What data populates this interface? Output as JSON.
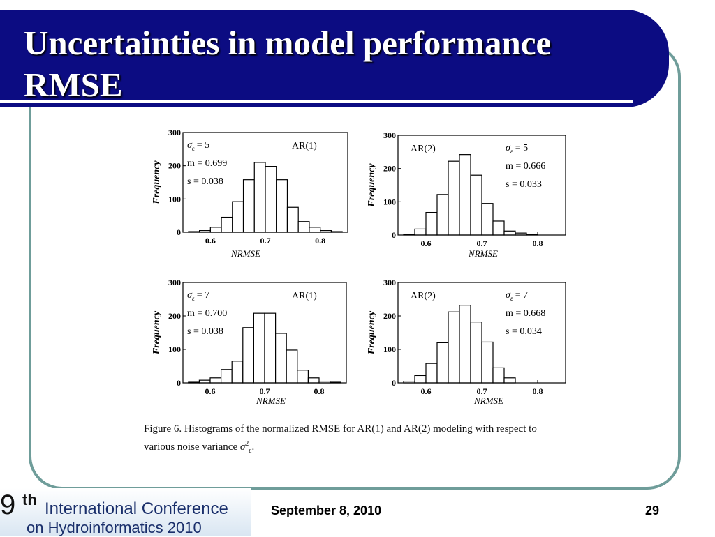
{
  "slide": {
    "title_line1": "Uncertainties in model performance",
    "title_line2": "RMSE",
    "date": "September 8, 2010",
    "page_number": "29"
  },
  "logo": {
    "number": "9",
    "superscript": "th",
    "line1": "International Conference",
    "line2": "on Hydroinformatics 2010"
  },
  "caption": {
    "line1": "Figure 6. Histograms of the normalized RMSE for AR(1) and AR(2) modeling with respect to",
    "line2_prefix": "various noise variance",
    "line2_symbol": "σ",
    "line2_sup": "2",
    "line2_sub": "ε",
    "line2_end": "."
  },
  "chart_data": [
    {
      "type": "bar",
      "model": "AR(1)",
      "sigma_label": "σ",
      "sigma_sub": "ε",
      "sigma_value": "= 5",
      "m_text": "m = 0.699",
      "s_text": "s = 0.038",
      "xlabel": "NRMSE",
      "ylabel": "Frequency",
      "xlim": [
        0.55,
        0.85
      ],
      "ylim": [
        0,
        300
      ],
      "xticks": [
        "0.6",
        "0.7",
        "0.8"
      ],
      "yticks": [
        "0",
        "100",
        "200",
        "300"
      ],
      "bin_start": 0.56,
      "bin_width": 0.02,
      "values": [
        2,
        5,
        15,
        45,
        92,
        158,
        210,
        198,
        158,
        75,
        32,
        15,
        5,
        2
      ]
    },
    {
      "type": "bar",
      "model": "AR(2)",
      "sigma_label": "σ",
      "sigma_sub": "ε",
      "sigma_value": "= 5",
      "m_text": "m = 0.666",
      "s_text": "s = 0.033",
      "xlabel": "NRMSE",
      "ylabel": "Frequency",
      "xlim": [
        0.55,
        0.85
      ],
      "ylim": [
        0,
        300
      ],
      "xticks": [
        "0.6",
        "0.7",
        "0.8"
      ],
      "yticks": [
        "0",
        "100",
        "200",
        "300"
      ],
      "bin_start": 0.56,
      "bin_width": 0.02,
      "values": [
        2,
        18,
        68,
        122,
        222,
        242,
        180,
        95,
        42,
        12,
        6,
        2
      ]
    },
    {
      "type": "bar",
      "model": "AR(1)",
      "sigma_label": "σ",
      "sigma_sub": "ε",
      "sigma_value": "= 7",
      "m_text": "m = 0.700",
      "s_text": "s = 0.038",
      "xlabel": "NRMSE",
      "ylabel": "Frequency",
      "xlim": [
        0.55,
        0.85
      ],
      "ylim": [
        0,
        300
      ],
      "xticks": [
        "0.6",
        "0.7",
        "0.8"
      ],
      "yticks": [
        "0",
        "100",
        "200",
        "300"
      ],
      "bin_start": 0.56,
      "bin_width": 0.02,
      "values": [
        2,
        8,
        15,
        40,
        65,
        165,
        208,
        208,
        148,
        98,
        38,
        15,
        5,
        2
      ]
    },
    {
      "type": "bar",
      "model": "AR(2)",
      "sigma_label": "σ",
      "sigma_sub": "ε",
      "sigma_value": "= 7",
      "m_text": "m = 0.668",
      "s_text": "s = 0.034",
      "xlabel": "NRMSE",
      "ylabel": "Frequency",
      "xlim": [
        0.55,
        0.85
      ],
      "ylim": [
        0,
        300
      ],
      "xticks": [
        "0.6",
        "0.7",
        "0.8"
      ],
      "yticks": [
        "0",
        "100",
        "200",
        "300"
      ],
      "bin_start": 0.56,
      "bin_width": 0.02,
      "values": [
        5,
        22,
        58,
        120,
        212,
        232,
        182,
        122,
        45,
        15
      ]
    }
  ]
}
